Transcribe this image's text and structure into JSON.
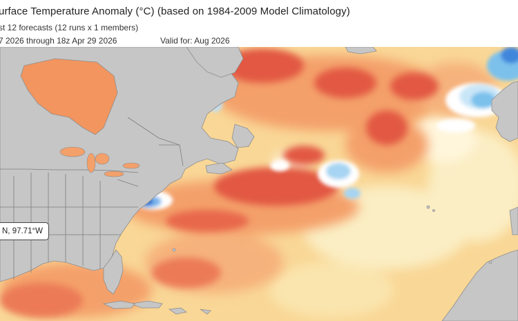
{
  "header": {
    "title": "urface Temperature Anomaly (°C) (based on 1984-2009 Model Climatology)",
    "subtitle": "st 12 forecasts (12 runs x 1 members)",
    "range": "7 2026 through 18z Apr 29 2026",
    "valid_for": "Valid for: Aug 2026"
  },
  "map": {
    "region": "North Atlantic",
    "variable": "sea surface temperature anomaly",
    "colors": {
      "land": "#c6c6c6",
      "ocean_neutral": "#fbf3d2",
      "warm_light": "#f9cf92",
      "warm_medium": "#f2955f",
      "warm_strong": "#e25843",
      "cool_light": "#c9e6f7",
      "cool_medium": "#7cc1ec",
      "cool_strong": "#2f6fd0"
    }
  },
  "tooltip": {
    "text": "N, 97.71°W"
  }
}
